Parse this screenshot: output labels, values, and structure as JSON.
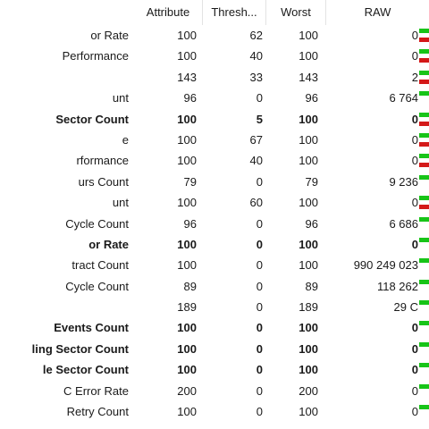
{
  "header": {
    "attribute": "Attribute",
    "threshold": "Thresh...",
    "worst": "Worst",
    "raw": "RAW"
  },
  "colors": {
    "ok": "#18c418",
    "bad": "#d41818"
  },
  "rows": [
    {
      "name": "or Rate",
      "attribute": "100",
      "threshold": "62",
      "worst": "100",
      "raw": "0",
      "bold": false,
      "red": true
    },
    {
      "name": "Performance",
      "attribute": "100",
      "threshold": "40",
      "worst": "100",
      "raw": "0",
      "bold": false,
      "red": true
    },
    {
      "name": "",
      "attribute": "143",
      "threshold": "33",
      "worst": "143",
      "raw": "2",
      "bold": false,
      "red": true
    },
    {
      "name": "unt",
      "attribute": "96",
      "threshold": "0",
      "worst": "96",
      "raw": "6 764",
      "bold": false,
      "red": false
    },
    {
      "name": "Sector Count",
      "attribute": "100",
      "threshold": "5",
      "worst": "100",
      "raw": "0",
      "bold": true,
      "red": true
    },
    {
      "name": "e",
      "attribute": "100",
      "threshold": "67",
      "worst": "100",
      "raw": "0",
      "bold": false,
      "red": true
    },
    {
      "name": "rformance",
      "attribute": "100",
      "threshold": "40",
      "worst": "100",
      "raw": "0",
      "bold": false,
      "red": true
    },
    {
      "name": "urs Count",
      "attribute": "79",
      "threshold": "0",
      "worst": "79",
      "raw": "9 236",
      "bold": false,
      "red": false
    },
    {
      "name": "unt",
      "attribute": "100",
      "threshold": "60",
      "worst": "100",
      "raw": "0",
      "bold": false,
      "red": true
    },
    {
      "name": "Cycle Count",
      "attribute": "96",
      "threshold": "0",
      "worst": "96",
      "raw": "6 686",
      "bold": false,
      "red": false
    },
    {
      "name": "or Rate",
      "attribute": "100",
      "threshold": "0",
      "worst": "100",
      "raw": "0",
      "bold": true,
      "red": false
    },
    {
      "name": "tract Count",
      "attribute": "100",
      "threshold": "0",
      "worst": "100",
      "raw": "990 249 023",
      "bold": false,
      "red": false
    },
    {
      "name": "Cycle Count",
      "attribute": "89",
      "threshold": "0",
      "worst": "89",
      "raw": "118 262",
      "bold": false,
      "red": false
    },
    {
      "name": "",
      "attribute": "189",
      "threshold": "0",
      "worst": "189",
      "raw": "29 C",
      "bold": false,
      "red": false
    },
    {
      "name": "Events Count",
      "attribute": "100",
      "threshold": "0",
      "worst": "100",
      "raw": "0",
      "bold": true,
      "red": false
    },
    {
      "name": "ling Sector Count",
      "attribute": "100",
      "threshold": "0",
      "worst": "100",
      "raw": "0",
      "bold": true,
      "red": false
    },
    {
      "name": "le Sector Count",
      "attribute": "100",
      "threshold": "0",
      "worst": "100",
      "raw": "0",
      "bold": true,
      "red": false
    },
    {
      "name": "C Error Rate",
      "attribute": "200",
      "threshold": "0",
      "worst": "200",
      "raw": "0",
      "bold": false,
      "red": false
    },
    {
      "name": "Retry Count",
      "attribute": "100",
      "threshold": "0",
      "worst": "100",
      "raw": "0",
      "bold": false,
      "red": false
    }
  ]
}
